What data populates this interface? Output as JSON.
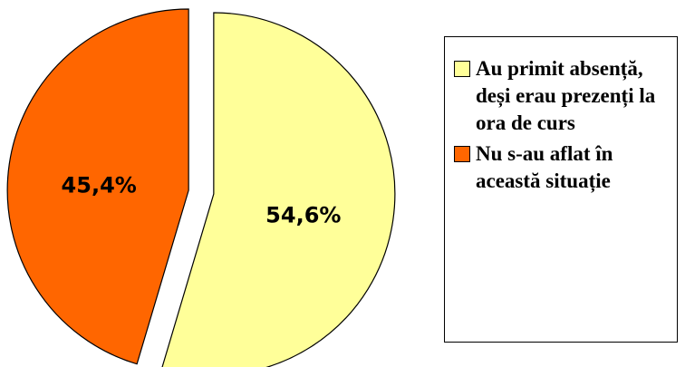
{
  "chart_data": {
    "type": "pie",
    "categories": [
      "Au primit absență, deși erau prezenți la ora de curs",
      "Nu s-au aflat în această situație"
    ],
    "values": [
      54.6,
      45.4
    ],
    "value_labels": [
      "54,6%",
      "45,4%"
    ],
    "colors": [
      "#ffff99",
      "#ff6600"
    ],
    "legend": "right"
  }
}
